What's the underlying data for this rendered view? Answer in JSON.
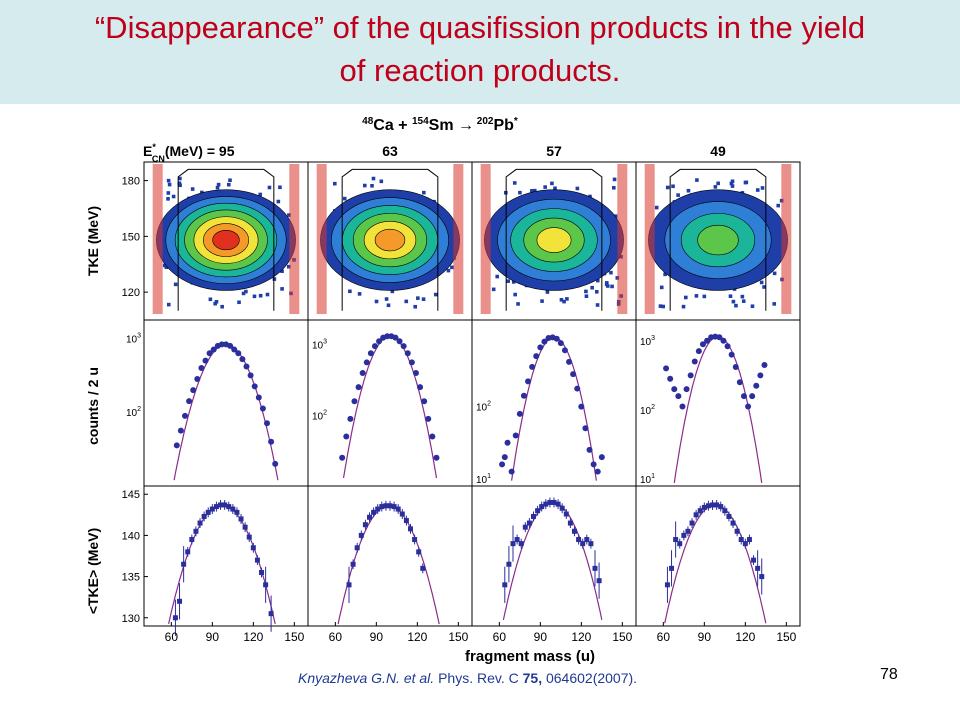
{
  "slide": {
    "title_line1": "“Disappearance” of the quasifission products in the yield",
    "title_line2": "of reaction products.",
    "page_number": "78"
  },
  "citation": {
    "authors": "Knyazheva G.N. et al.",
    "journal": " Phys. Rev. C ",
    "volume": "75,",
    "rest": " 064602(2007)."
  },
  "colors": {
    "title": "#c0001a",
    "title_band": "#d6ebed",
    "data_points": "#2b2f9c",
    "fit_curve": "#8b2b8b",
    "citation": "#1f3a93"
  },
  "chart_data": {
    "type": "scatter",
    "reaction": "48Ca + 154Sm → 202Pb*",
    "reaction_parts": {
      "a1": "48",
      "s1": "Ca + ",
      "a2": "154",
      "s2": "Sm ",
      "arrow": "→",
      "a3": " 202",
      "s3": "Pb",
      "star": "*"
    },
    "energy_label": "E",
    "energy_label_sup": "*",
    "energy_label_sub": "CN",
    "energy_label_tail": "(MeV) = 95",
    "energies": [
      "95",
      "63",
      "57",
      "49"
    ],
    "xlabel": "fragment mass (u)",
    "xlim": [
      40,
      160
    ],
    "xticks": [
      "60",
      "90",
      "120",
      "150"
    ],
    "rows": [
      {
        "name": "tke-map",
        "ylabel": "TKE (MeV)",
        "ylim": [
          105,
          190
        ],
        "yticks": [
          "120",
          "150",
          "180"
        ],
        "panel_type": "heatmap",
        "peak_fraction": [
          1.0,
          0.9,
          0.7,
          0.6
        ]
      },
      {
        "name": "mass-yield",
        "ylabel": "counts / 2 u",
        "scale": "log",
        "panel_type": "scatter",
        "panel_yticks": [
          [
            {
              "label": "10",
              "exp": "3"
            },
            {
              "label": "10",
              "exp": "2"
            }
          ],
          [
            {
              "label": "10",
              "exp": "3"
            },
            {
              "label": "10",
              "exp": "2"
            }
          ],
          [
            {
              "label": "10",
              "exp": "2"
            },
            {
              "label": "10",
              "exp": "1"
            }
          ],
          [
            {
              "label": "10",
              "exp": "3"
            },
            {
              "label": "10",
              "exp": "2"
            },
            {
              "label": "10",
              "exp": "1"
            }
          ]
        ],
        "points": [
          [
            [
              64,
              1.55
            ],
            [
              67,
              1.75
            ],
            [
              70,
              1.95
            ],
            [
              73,
              2.15
            ],
            [
              76,
              2.3
            ],
            [
              79,
              2.45
            ],
            [
              82,
              2.6
            ],
            [
              85,
              2.7
            ],
            [
              88,
              2.8
            ],
            [
              91,
              2.85
            ],
            [
              94,
              2.9
            ],
            [
              97,
              2.92
            ],
            [
              100,
              2.92
            ],
            [
              103,
              2.9
            ],
            [
              106,
              2.85
            ],
            [
              109,
              2.8
            ],
            [
              112,
              2.72
            ],
            [
              115,
              2.62
            ],
            [
              118,
              2.5
            ],
            [
              121,
              2.35
            ],
            [
              124,
              2.2
            ],
            [
              127,
              2.05
            ],
            [
              130,
              1.85
            ],
            [
              133,
              1.6
            ],
            [
              136,
              1.3
            ]
          ],
          [
            [
              65,
              1.4
            ],
            [
              68,
              1.7
            ],
            [
              71,
              1.95
            ],
            [
              74,
              2.2
            ],
            [
              77,
              2.4
            ],
            [
              80,
              2.6
            ],
            [
              83,
              2.75
            ],
            [
              86,
              2.88
            ],
            [
              89,
              2.98
            ],
            [
              92,
              3.05
            ],
            [
              95,
              3.1
            ],
            [
              98,
              3.12
            ],
            [
              101,
              3.12
            ],
            [
              104,
              3.1
            ],
            [
              107,
              3.05
            ],
            [
              110,
              2.98
            ],
            [
              113,
              2.88
            ],
            [
              116,
              2.75
            ],
            [
              119,
              2.6
            ],
            [
              122,
              2.4
            ],
            [
              125,
              2.2
            ],
            [
              128,
              1.95
            ],
            [
              131,
              1.7
            ],
            [
              134,
              1.4
            ]
          ],
          [
            [
              62,
              1.2
            ],
            [
              64,
              1.3
            ],
            [
              66,
              1.5
            ],
            [
              69,
              1.1
            ],
            [
              72,
              1.6
            ],
            [
              75,
              1.9
            ],
            [
              78,
              2.15
            ],
            [
              81,
              2.35
            ],
            [
              84,
              2.55
            ],
            [
              87,
              2.7
            ],
            [
              90,
              2.82
            ],
            [
              93,
              2.9
            ],
            [
              96,
              2.95
            ],
            [
              99,
              2.96
            ],
            [
              102,
              2.94
            ],
            [
              105,
              2.88
            ],
            [
              108,
              2.78
            ],
            [
              111,
              2.62
            ],
            [
              114,
              2.45
            ],
            [
              117,
              2.25
            ],
            [
              120,
              2.0
            ],
            [
              123,
              1.7
            ],
            [
              126,
              1.4
            ],
            [
              129,
              1.2
            ],
            [
              132,
              1.1
            ],
            [
              135,
              1.3
            ]
          ],
          [
            [
              62,
              2.6
            ],
            [
              65,
              2.45
            ],
            [
              68,
              2.3
            ],
            [
              71,
              2.2
            ],
            [
              74,
              2.05
            ],
            [
              77,
              2.3
            ],
            [
              80,
              2.5
            ],
            [
              83,
              2.7
            ],
            [
              86,
              2.85
            ],
            [
              89,
              2.95
            ],
            [
              92,
              3.0
            ],
            [
              95,
              3.05
            ],
            [
              98,
              3.06
            ],
            [
              101,
              3.05
            ],
            [
              104,
              3.0
            ],
            [
              107,
              2.92
            ],
            [
              110,
              2.8
            ],
            [
              113,
              2.62
            ],
            [
              116,
              2.4
            ],
            [
              119,
              2.2
            ],
            [
              122,
              2.05
            ],
            [
              125,
              2.2
            ],
            [
              128,
              2.35
            ],
            [
              131,
              2.5
            ],
            [
              134,
              2.65
            ]
          ]
        ],
        "fit": [
          {
            "center": 100,
            "peak": 2.92,
            "width": 28,
            "ymin": 1.0,
            "ymax": 3.25
          },
          {
            "center": 100,
            "peak": 3.12,
            "width": 24,
            "ymin": 1.0,
            "ymax": 3.35
          },
          {
            "center": 100,
            "peak": 2.96,
            "width": 22,
            "ymin": 0.9,
            "ymax": 3.2
          },
          {
            "center": 100,
            "peak": 3.06,
            "width": 22,
            "ymin": 0.9,
            "ymax": 3.3
          }
        ]
      },
      {
        "name": "mean-tke",
        "ylabel": "<TKE> (MeV)",
        "ylim": [
          129,
          146
        ],
        "yticks": [
          "130",
          "135",
          "140",
          "145"
        ],
        "panel_type": "scatter",
        "points": [
          [
            [
              63,
              130.0
            ],
            [
              66,
              132.0
            ],
            [
              69,
              136.5
            ],
            [
              72,
              138.0
            ],
            [
              75,
              139.5
            ],
            [
              78,
              140.5
            ],
            [
              81,
              141.5
            ],
            [
              84,
              142.3
            ],
            [
              87,
              142.8
            ],
            [
              90,
              143.2
            ],
            [
              93,
              143.5
            ],
            [
              96,
              143.7
            ],
            [
              99,
              143.7
            ],
            [
              102,
              143.5
            ],
            [
              105,
              143.2
            ],
            [
              108,
              142.8
            ],
            [
              111,
              142.0
            ],
            [
              114,
              141.0
            ],
            [
              117,
              139.8
            ],
            [
              120,
              138.5
            ],
            [
              123,
              137.0
            ],
            [
              126,
              135.5
            ],
            [
              129,
              134.0
            ],
            [
              133,
              130.5
            ]
          ],
          [
            [
              70,
              134.0
            ],
            [
              73,
              136.5
            ],
            [
              76,
              138.5
            ],
            [
              79,
              140.0
            ],
            [
              82,
              141.3
            ],
            [
              85,
              142.2
            ],
            [
              88,
              142.8
            ],
            [
              91,
              143.2
            ],
            [
              94,
              143.5
            ],
            [
              97,
              143.6
            ],
            [
              100,
              143.6
            ],
            [
              103,
              143.5
            ],
            [
              106,
              143.2
            ],
            [
              109,
              142.6
            ],
            [
              112,
              141.8
            ],
            [
              115,
              140.8
            ],
            [
              118,
              139.5
            ],
            [
              121,
              138.0
            ],
            [
              124,
              136.0
            ]
          ],
          [
            [
              64,
              134.0
            ],
            [
              67,
              136.5
            ],
            [
              70,
              139.0
            ],
            [
              73,
              139.5
            ],
            [
              76,
              139.0
            ],
            [
              79,
              141.0
            ],
            [
              82,
              141.5
            ],
            [
              85,
              142.3
            ],
            [
              88,
              143.0
            ],
            [
              91,
              143.5
            ],
            [
              94,
              143.8
            ],
            [
              97,
              144.0
            ],
            [
              100,
              144.0
            ],
            [
              103,
              143.8
            ],
            [
              106,
              143.3
            ],
            [
              109,
              142.6
            ],
            [
              112,
              141.5
            ],
            [
              115,
              140.5
            ],
            [
              118,
              139.5
            ],
            [
              121,
              139.0
            ],
            [
              124,
              139.5
            ],
            [
              127,
              139.0
            ],
            [
              130,
              136.0
            ],
            [
              133,
              134.5
            ]
          ],
          [
            [
              63,
              134.0
            ],
            [
              66,
              136.0
            ],
            [
              69,
              139.5
            ],
            [
              72,
              139.0
            ],
            [
              75,
              140.0
            ],
            [
              78,
              140.5
            ],
            [
              81,
              141.5
            ],
            [
              84,
              142.5
            ],
            [
              87,
              143.0
            ],
            [
              90,
              143.4
            ],
            [
              93,
              143.6
            ],
            [
              96,
              143.7
            ],
            [
              99,
              143.7
            ],
            [
              102,
              143.5
            ],
            [
              105,
              143.0
            ],
            [
              108,
              142.3
            ],
            [
              111,
              141.5
            ],
            [
              114,
              140.5
            ],
            [
              117,
              139.5
            ],
            [
              120,
              139.0
            ],
            [
              123,
              139.5
            ],
            [
              126,
              137.0
            ],
            [
              129,
              136.0
            ],
            [
              132,
              135.0
            ]
          ]
        ],
        "fit": [
          {
            "center": 97,
            "peak": 143.7,
            "k": 0.0095,
            "ymin": 129,
            "ymax": 146
          },
          {
            "center": 99,
            "peak": 143.6,
            "k": 0.0105,
            "ymin": 129,
            "ymax": 146
          },
          {
            "center": 99,
            "peak": 144.0,
            "k": 0.011,
            "ymin": 129,
            "ymax": 146
          },
          {
            "center": 98,
            "peak": 143.7,
            "k": 0.0105,
            "ymin": 129,
            "ymax": 146
          }
        ]
      }
    ]
  }
}
